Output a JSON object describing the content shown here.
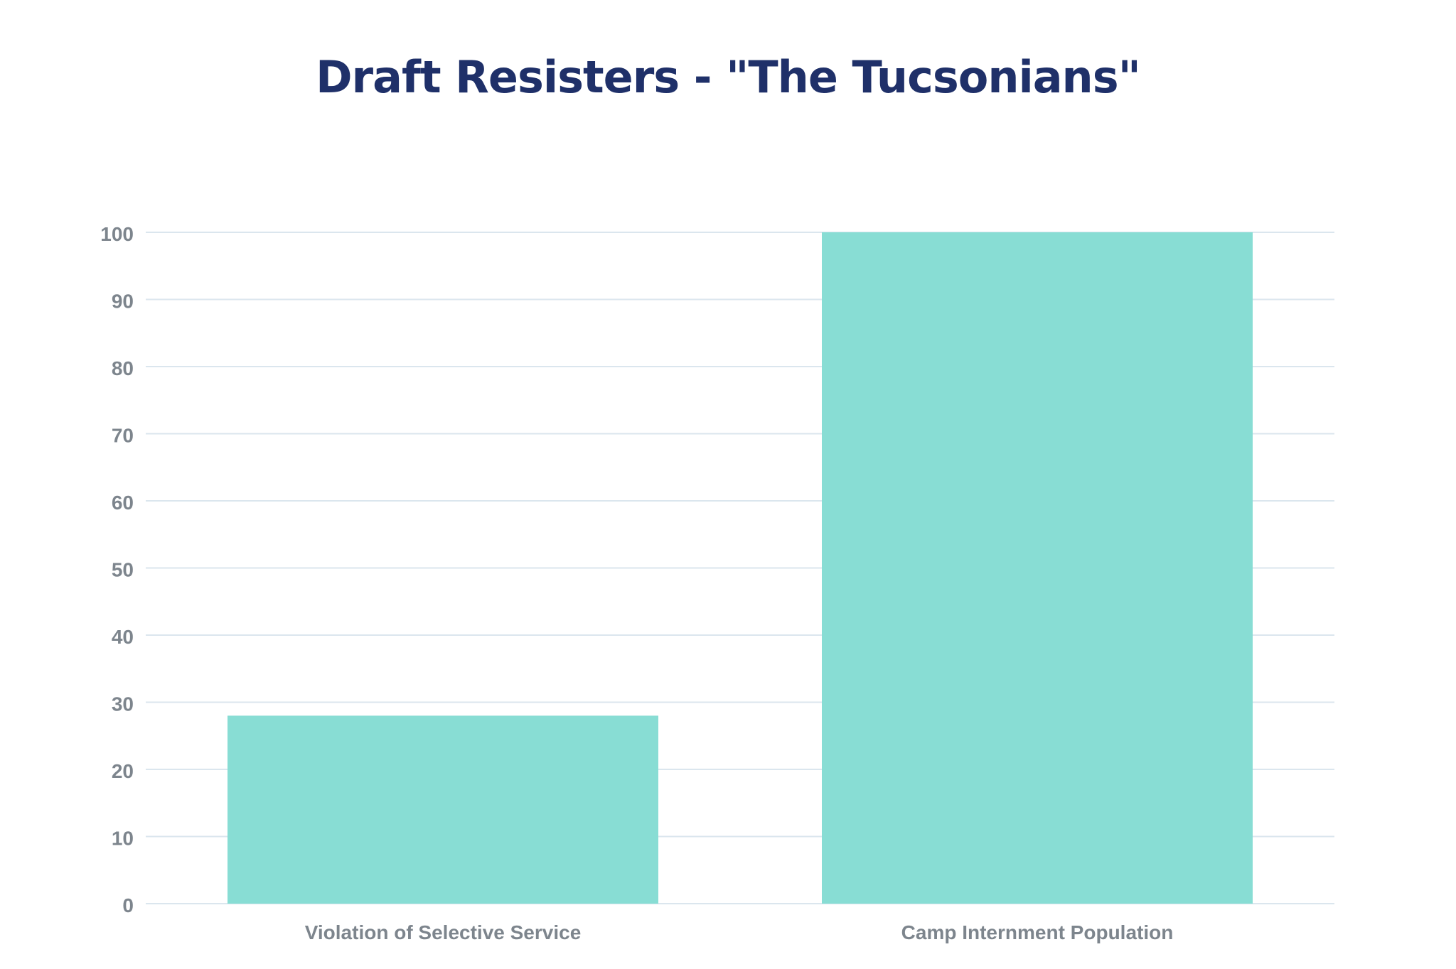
{
  "chart_data": {
    "type": "bar",
    "title": "Draft Resisters - \"The Tucsonians\"",
    "xlabel": "",
    "ylabel": "",
    "categories": [
      "Violation of Selective Service",
      "Camp Internment Population"
    ],
    "values": [
      28,
      100
    ],
    "ylim": [
      0,
      100
    ],
    "yticks": [
      0,
      10,
      20,
      30,
      40,
      50,
      60,
      70,
      80,
      90,
      100
    ],
    "grid": true,
    "legend": "none",
    "colors": {
      "bar": "#88ddd4",
      "title": "#1f3069",
      "tick_label": "#7d858d",
      "grid": "#dbe6ee"
    }
  }
}
